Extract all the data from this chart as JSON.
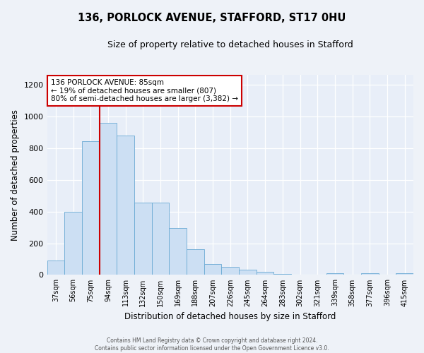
{
  "title": "136, PORLOCK AVENUE, STAFFORD, ST17 0HU",
  "subtitle": "Size of property relative to detached houses in Stafford",
  "xlabel": "Distribution of detached houses by size in Stafford",
  "ylabel": "Number of detached properties",
  "bar_labels": [
    "37sqm",
    "56sqm",
    "75sqm",
    "94sqm",
    "113sqm",
    "132sqm",
    "150sqm",
    "169sqm",
    "188sqm",
    "207sqm",
    "226sqm",
    "245sqm",
    "264sqm",
    "283sqm",
    "302sqm",
    "321sqm",
    "339sqm",
    "358sqm",
    "377sqm",
    "396sqm",
    "415sqm"
  ],
  "bar_values": [
    90,
    400,
    845,
    960,
    880,
    455,
    455,
    295,
    160,
    70,
    50,
    35,
    20,
    5,
    0,
    0,
    10,
    0,
    10,
    0,
    10
  ],
  "bar_color": "#ccdff3",
  "bar_edge_color": "#6aaad4",
  "vline_color": "#cc0000",
  "ylim": [
    0,
    1260
  ],
  "yticks": [
    0,
    200,
    400,
    600,
    800,
    1000,
    1200
  ],
  "annotation_title": "136 PORLOCK AVENUE: 85sqm",
  "annotation_line1": "← 19% of detached houses are smaller (807)",
  "annotation_line2": "80% of semi-detached houses are larger (3,382) →",
  "annotation_box_color": "#ffffff",
  "annotation_box_edge_color": "#cc0000",
  "footer_line1": "Contains HM Land Registry data © Crown copyright and database right 2024.",
  "footer_line2": "Contains public sector information licensed under the Open Government Licence v3.0.",
  "background_color": "#eef2f8",
  "plot_bg_color": "#e8eef8"
}
